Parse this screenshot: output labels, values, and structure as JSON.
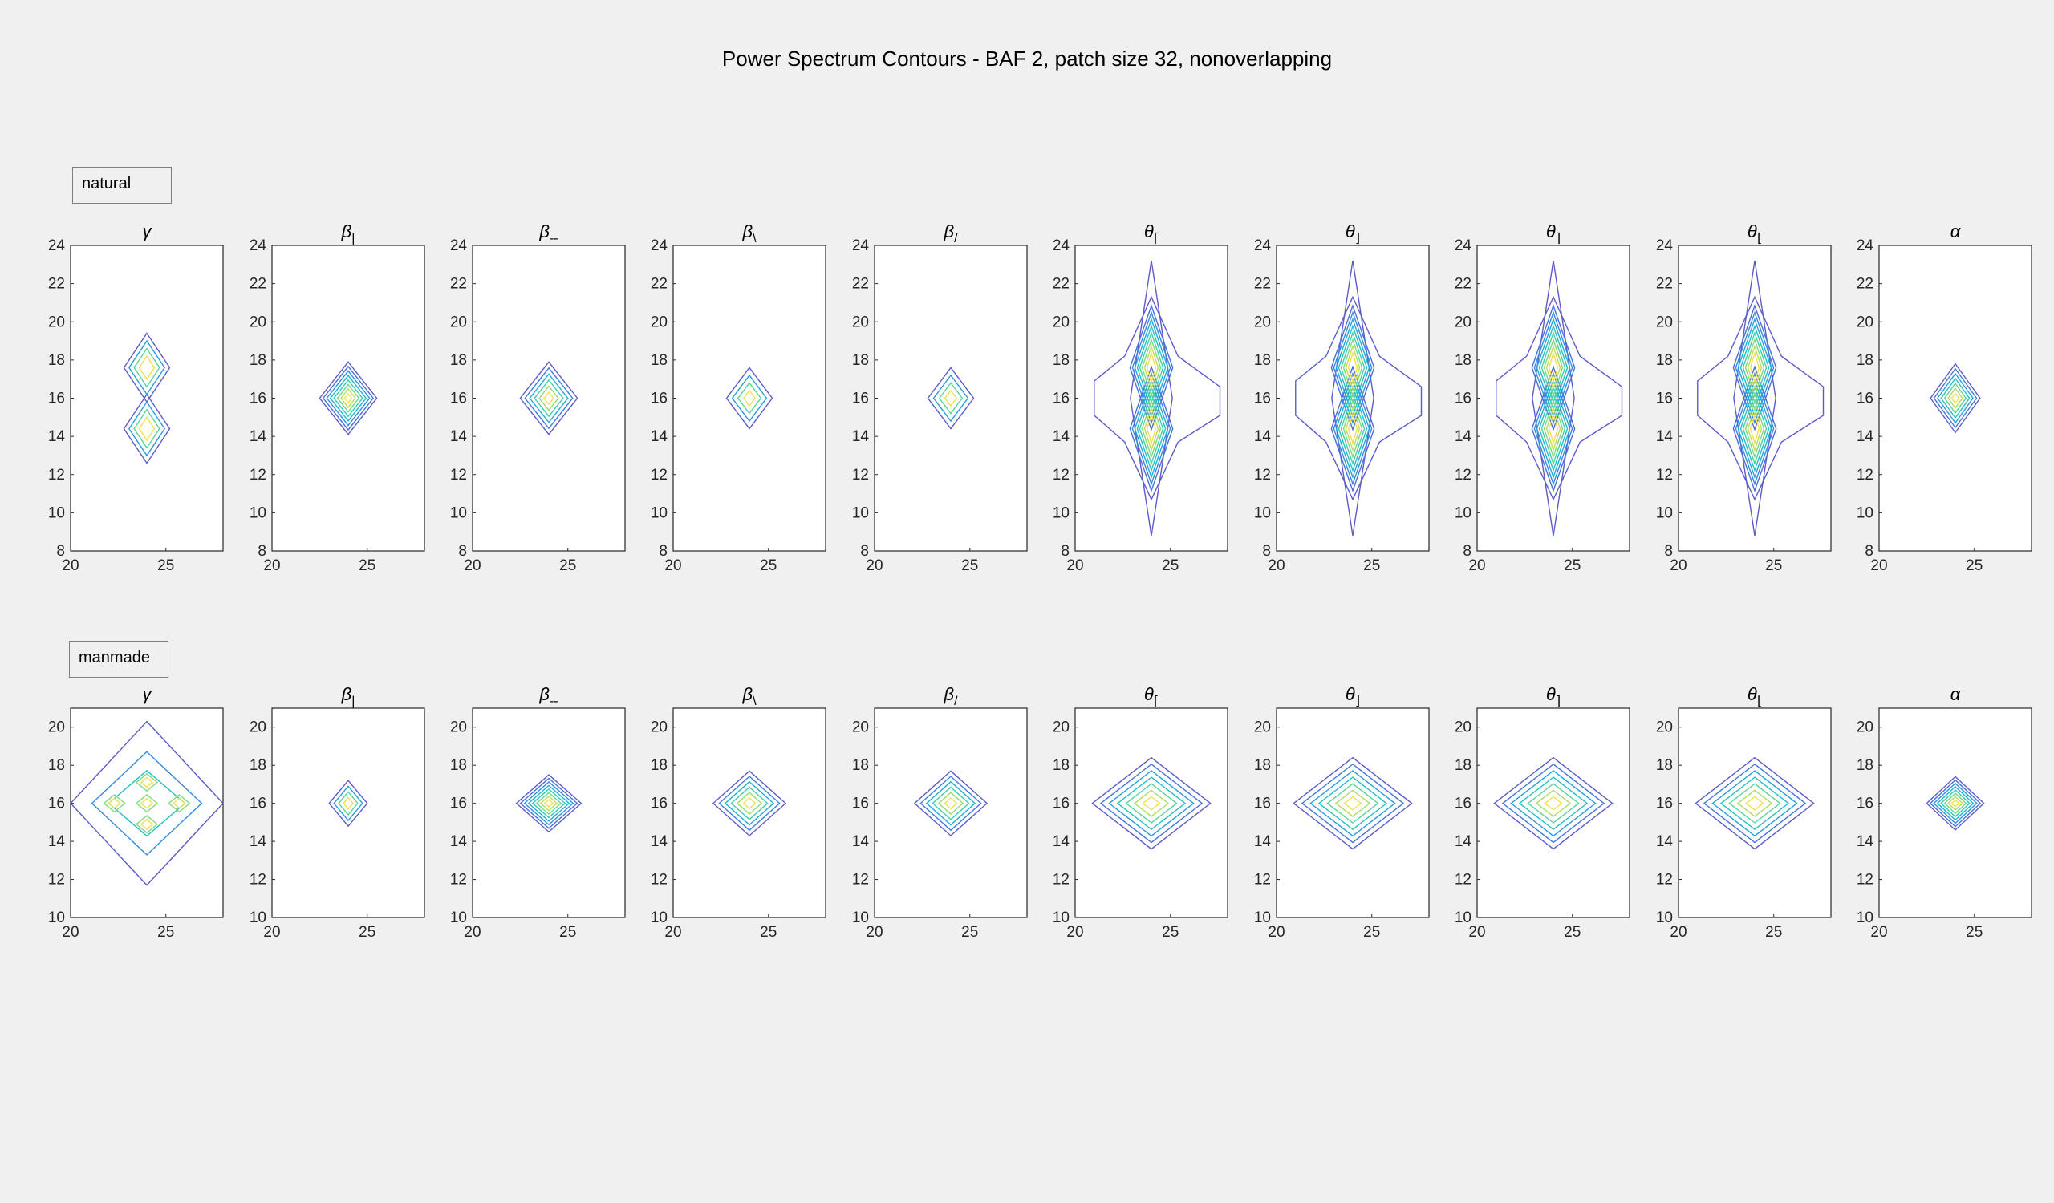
{
  "title": "Power Spectrum Contours - BAF 2, patch size 32, nonoverlapping",
  "chart_data": [
    {
      "type": "contour-grid",
      "row_label": "natural",
      "xlim": [
        20,
        28
      ],
      "ylim": [
        8,
        24
      ],
      "xticks": [
        20,
        25
      ],
      "yticks": [
        8,
        10,
        12,
        14,
        16,
        18,
        20,
        22,
        24
      ],
      "colormap": [
        "#5c5cc8",
        "#4870d8",
        "#2f92e0",
        "#19b4d4",
        "#2cccb4",
        "#6ed88a",
        "#b8dc5c",
        "#f4e04a"
      ],
      "panels": [
        {
          "base": "γ",
          "sub": "",
          "shape": "twin",
          "cx": 24,
          "cy": 16,
          "cw": 1.2,
          "ch": 3.6,
          "gap": 1.6,
          "levels": 4
        },
        {
          "base": "β",
          "sub": "|",
          "shape": "diamond",
          "cx": 24,
          "cy": 16,
          "cw": 1.5,
          "ch": 1.9,
          "levels": 8
        },
        {
          "base": "β",
          "sub": "--",
          "shape": "diamond",
          "cx": 24,
          "cy": 16,
          "cw": 1.5,
          "ch": 1.9,
          "levels": 6
        },
        {
          "base": "β",
          "sub": "\\",
          "shape": "diamond",
          "cx": 24,
          "cy": 16,
          "cw": 1.2,
          "ch": 1.6,
          "levels": 4
        },
        {
          "base": "β",
          "sub": "/",
          "shape": "diamond",
          "cx": 24,
          "cy": 16,
          "cw": 1.2,
          "ch": 1.6,
          "levels": 4
        },
        {
          "base": "θ",
          "sub": "⌈",
          "shape": "hourglass",
          "cx": 24,
          "cy": 16,
          "cw": 3.2,
          "ch": 7.2,
          "bw": 3.6,
          "levels": 9
        },
        {
          "base": "θ",
          "sub": "⌋",
          "shape": "hourglass",
          "cx": 24,
          "cy": 16,
          "cw": 3.2,
          "ch": 7.2,
          "bw": 3.6,
          "levels": 9
        },
        {
          "base": "θ",
          "sub": "⌉",
          "shape": "hourglass",
          "cx": 24,
          "cy": 16,
          "cw": 3.2,
          "ch": 7.2,
          "bw": 3.6,
          "levels": 9
        },
        {
          "base": "θ",
          "sub": "⌊",
          "shape": "hourglass",
          "cx": 24,
          "cy": 16,
          "cw": 3.2,
          "ch": 7.2,
          "bw": 3.6,
          "levels": 9
        },
        {
          "base": "α",
          "sub": "",
          "shape": "diamond",
          "cx": 24,
          "cy": 16,
          "cw": 1.3,
          "ch": 1.8,
          "levels": 7
        }
      ]
    },
    {
      "type": "contour-grid",
      "row_label": "manmade",
      "xlim": [
        20,
        28
      ],
      "ylim": [
        10,
        21
      ],
      "xticks": [
        20,
        25
      ],
      "yticks": [
        10,
        12,
        14,
        16,
        18,
        20
      ],
      "colormap": [
        "#5c5cc8",
        "#4870d8",
        "#2f92e0",
        "#19b4d4",
        "#2cccb4",
        "#6ed88a",
        "#b8dc5c",
        "#f4e04a"
      ],
      "panels": [
        {
          "base": "γ",
          "sub": "",
          "shape": "cluster",
          "cx": 24,
          "cy": 16,
          "cw": 4.0,
          "ch": 4.3,
          "levels": 5
        },
        {
          "base": "β",
          "sub": "|",
          "shape": "diamond",
          "cx": 24,
          "cy": 16,
          "cw": 1.0,
          "ch": 1.2,
          "levels": 4
        },
        {
          "base": "β",
          "sub": "--",
          "shape": "diamond",
          "cx": 24,
          "cy": 16,
          "cw": 1.7,
          "ch": 1.5,
          "levels": 8
        },
        {
          "base": "β",
          "sub": "\\",
          "shape": "diamond",
          "cx": 24,
          "cy": 16,
          "cw": 1.9,
          "ch": 1.7,
          "levels": 6
        },
        {
          "base": "β",
          "sub": "/",
          "shape": "diamond",
          "cx": 24,
          "cy": 16,
          "cw": 1.9,
          "ch": 1.7,
          "levels": 6
        },
        {
          "base": "θ",
          "sub": "⌈",
          "shape": "diamond",
          "cx": 24,
          "cy": 16,
          "cw": 3.1,
          "ch": 2.4,
          "levels": 7
        },
        {
          "base": "θ",
          "sub": "⌋",
          "shape": "diamond",
          "cx": 24,
          "cy": 16,
          "cw": 3.1,
          "ch": 2.4,
          "levels": 7
        },
        {
          "base": "θ",
          "sub": "⌉",
          "shape": "diamond",
          "cx": 24,
          "cy": 16,
          "cw": 3.1,
          "ch": 2.4,
          "levels": 7
        },
        {
          "base": "θ",
          "sub": "⌊",
          "shape": "diamond",
          "cx": 24,
          "cy": 16,
          "cw": 3.1,
          "ch": 2.4,
          "levels": 7
        },
        {
          "base": "α",
          "sub": "",
          "shape": "diamond",
          "cx": 24,
          "cy": 16,
          "cw": 1.5,
          "ch": 1.4,
          "levels": 8
        }
      ]
    }
  ]
}
